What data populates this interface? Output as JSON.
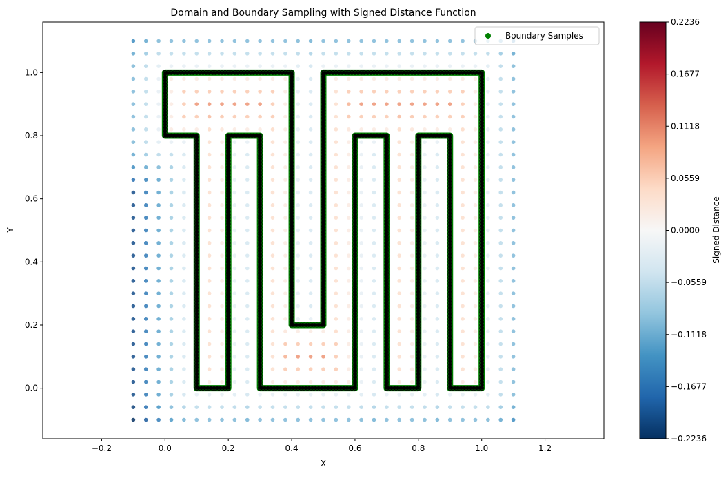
{
  "chart_data": {
    "type": "scatter",
    "title": "Domain and Boundary Sampling with Signed Distance Function",
    "xlabel": "X",
    "ylabel": "Y",
    "xlim": [
      -0.386,
      1.386
    ],
    "ylim": [
      -0.16,
      1.16
    ],
    "xticks": [
      -0.2,
      0.0,
      0.2,
      0.4,
      0.6,
      0.8,
      1.0,
      1.2
    ],
    "xtick_labels": [
      "−0.2",
      "0.0",
      "0.2",
      "0.4",
      "0.6",
      "0.8",
      "1.0",
      "1.2"
    ],
    "yticks": [
      0.0,
      0.2,
      0.4,
      0.6,
      0.8,
      1.0
    ],
    "ytick_labels": [
      "0.0",
      "0.2",
      "0.4",
      "0.6",
      "0.8",
      "1.0"
    ],
    "grid": false,
    "domain_grid": {
      "x_start": -0.1,
      "x_end": 1.1,
      "y_start": -0.1,
      "y_end": 1.1,
      "step": 0.04
    },
    "boundary_polygon": [
      [
        0,
        1
      ],
      [
        0.4,
        1
      ],
      [
        0.4,
        0.2
      ],
      [
        0.5,
        0.2
      ],
      [
        0.5,
        1
      ],
      [
        1,
        1
      ],
      [
        1,
        0
      ],
      [
        0.9,
        0
      ],
      [
        0.9,
        0.8
      ],
      [
        0.8,
        0.8
      ],
      [
        0.8,
        0
      ],
      [
        0.7,
        0
      ],
      [
        0.7,
        0.8
      ],
      [
        0.6,
        0.8
      ],
      [
        0.6,
        0
      ],
      [
        0.3,
        0
      ],
      [
        0.3,
        0.8
      ],
      [
        0.2,
        0.8
      ],
      [
        0.2,
        0
      ],
      [
        0.1,
        0
      ],
      [
        0.1,
        0.8
      ],
      [
        0,
        0.8
      ]
    ],
    "boundary_spacing": 0.01,
    "boundary_color": "#008000",
    "legend": {
      "label": "Boundary Samples",
      "placement": "top-right"
    },
    "colorbar": {
      "label": "Signed Distance",
      "colormap": "RdBu_r",
      "vmin": -0.2236,
      "vmax": 0.2236,
      "ticks": [
        0.2236,
        0.1677,
        0.1118,
        0.0559,
        0.0,
        -0.0559,
        -0.1118,
        -0.1677,
        -0.2236
      ],
      "tick_labels": [
        "0.2236",
        "0.1677",
        "0.1118",
        "0.0559",
        "0.0000",
        "−0.0559",
        "−0.1118",
        "−0.1677",
        "−0.2236"
      ]
    }
  }
}
